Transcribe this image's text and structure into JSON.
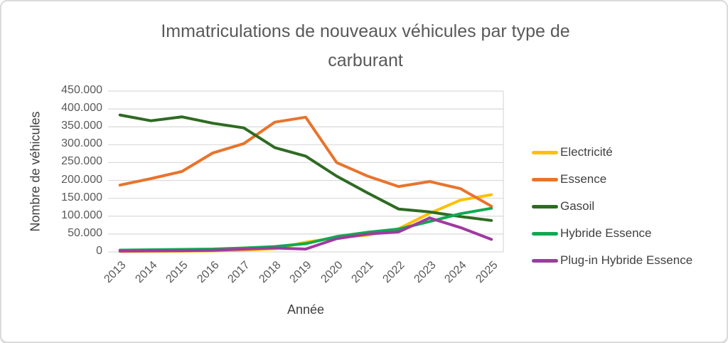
{
  "display": {
    "title_lines": [
      "Immatriculations de nouveaux véhicules par type de",
      "carburant"
    ]
  },
  "chart_data": {
    "type": "line",
    "title": "Immatriculations de nouveaux véhicules par type de carburant",
    "xlabel": "Année",
    "ylabel": "Nombre de véhicules",
    "x": [
      "2013",
      "2014",
      "2015",
      "2016",
      "2017",
      "2018",
      "2019",
      "2020",
      "2021",
      "2022",
      "2023",
      "2024",
      "2025"
    ],
    "ylim": [
      0,
      450000
    ],
    "y_tick_step": 50000,
    "y_tick_labels_top_to_bottom": [
      "450.000",
      "400.000",
      "350.000",
      "300.000",
      "250.000",
      "200.000",
      "150.000",
      "100.000",
      "50.000",
      "0"
    ],
    "grid": "horizontal",
    "legend_position": "right",
    "colors": {
      "grid": "#d9d9d9",
      "title_text": "#595959",
      "tick_text": "#595959",
      "axis_title_text": "#404040"
    },
    "series": [
      {
        "name": "Electricité",
        "color": "#FFC000",
        "values": [
          1000,
          1500,
          2000,
          3000,
          5000,
          9000,
          27000,
          40000,
          47000,
          65000,
          108000,
          145000,
          160000
        ]
      },
      {
        "name": "Essence",
        "color": "#E8742C",
        "values": [
          187000,
          205000,
          225000,
          277000,
          303000,
          363000,
          377000,
          250000,
          212000,
          183000,
          197000,
          177000,
          128000
        ]
      },
      {
        "name": "Gasoil",
        "color": "#2E6B22",
        "values": [
          383000,
          367000,
          378000,
          360000,
          347000,
          292000,
          268000,
          212000,
          165000,
          120000,
          112000,
          99000,
          88000
        ]
      },
      {
        "name": "Hybride Essence",
        "color": "#10A952",
        "values": [
          5000,
          6000,
          7000,
          8000,
          11000,
          15000,
          23000,
          43000,
          55000,
          64000,
          85000,
          107000,
          122000
        ]
      },
      {
        "name": "Plug-in Hybride Essence",
        "color": "#A03AA0",
        "values": [
          2500,
          3000,
          3500,
          4500,
          8000,
          11000,
          8000,
          37000,
          50000,
          56000,
          95000,
          68000,
          35000
        ]
      }
    ]
  }
}
